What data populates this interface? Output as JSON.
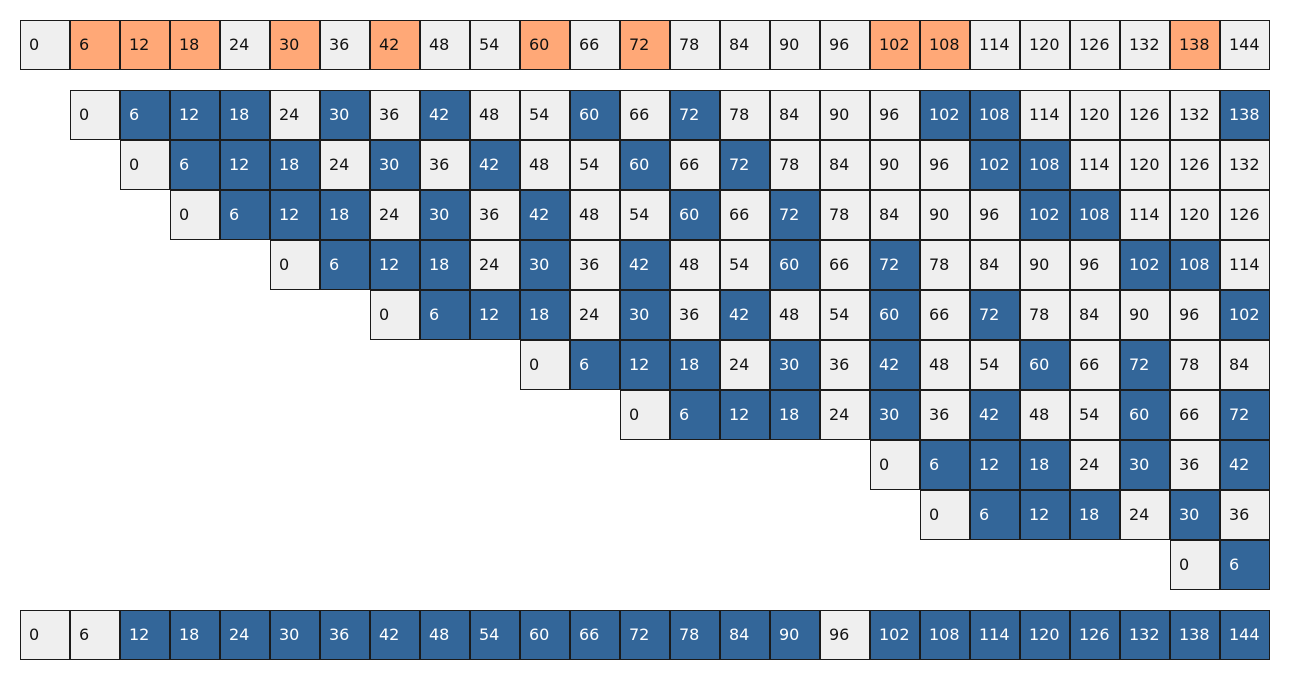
{
  "colors": {
    "plain": "#efefef",
    "orange": "#ffa877",
    "blue": "#336699",
    "border": "#1a1a1a"
  },
  "top_row": {
    "values": [
      0,
      6,
      12,
      18,
      24,
      30,
      36,
      42,
      48,
      54,
      60,
      66,
      72,
      78,
      84,
      90,
      96,
      102,
      108,
      114,
      120,
      126,
      132,
      138,
      144
    ],
    "highlighted": [
      6,
      12,
      18,
      30,
      42,
      60,
      72,
      102,
      108,
      138
    ]
  },
  "triangle_rows": [
    {
      "values": [
        0,
        6,
        12,
        18,
        24,
        30,
        36,
        42,
        48,
        54,
        60,
        66,
        72,
        78,
        84,
        90,
        96,
        102,
        108,
        114,
        120,
        126,
        132,
        138
      ],
      "highlighted": [
        6,
        12,
        18,
        30,
        42,
        60,
        72,
        102,
        108,
        138
      ]
    },
    {
      "values": [
        0,
        6,
        12,
        18,
        24,
        30,
        36,
        42,
        48,
        54,
        60,
        66,
        72,
        78,
        84,
        90,
        96,
        102,
        108,
        114,
        120,
        126,
        132
      ],
      "highlighted": [
        6,
        12,
        18,
        30,
        42,
        60,
        72,
        102,
        108
      ]
    },
    {
      "values": [
        0,
        6,
        12,
        18,
        24,
        30,
        36,
        42,
        48,
        54,
        60,
        66,
        72,
        78,
        84,
        90,
        96,
        102,
        108,
        114,
        120,
        126
      ],
      "highlighted": [
        6,
        12,
        18,
        30,
        42,
        60,
        72,
        102,
        108
      ]
    },
    {
      "values": [
        0,
        6,
        12,
        18,
        24,
        30,
        36,
        42,
        48,
        54,
        60,
        66,
        72,
        78,
        84,
        90,
        96,
        102,
        108,
        114
      ],
      "highlighted": [
        6,
        12,
        18,
        30,
        42,
        60,
        72,
        102,
        108
      ]
    },
    {
      "values": [
        0,
        6,
        12,
        18,
        24,
        30,
        36,
        42,
        48,
        54,
        60,
        66,
        72,
        78,
        84,
        90,
        96,
        102
      ],
      "highlighted": [
        6,
        12,
        18,
        30,
        42,
        60,
        72,
        102
      ]
    },
    {
      "values": [
        0,
        6,
        12,
        18,
        24,
        30,
        36,
        42,
        48,
        54,
        60,
        66,
        72,
        78,
        84
      ],
      "highlighted": [
        6,
        12,
        18,
        30,
        42,
        60,
        72
      ]
    },
    {
      "values": [
        0,
        6,
        12,
        18,
        24,
        30,
        36,
        42,
        48,
        54,
        60,
        66,
        72
      ],
      "highlighted": [
        6,
        12,
        18,
        30,
        42,
        60,
        72
      ]
    },
    {
      "values": [
        0,
        6,
        12,
        18,
        24,
        30,
        36,
        42
      ],
      "highlighted": [
        6,
        12,
        18,
        30,
        42
      ]
    },
    {
      "values": [
        0,
        6,
        12,
        18,
        24,
        30,
        36
      ],
      "highlighted": [
        6,
        12,
        18,
        30
      ]
    },
    {
      "values": [
        0,
        6
      ],
      "highlighted": [
        6
      ]
    }
  ],
  "bottom_row": {
    "values": [
      0,
      6,
      12,
      18,
      24,
      30,
      36,
      42,
      48,
      54,
      60,
      66,
      72,
      78,
      84,
      90,
      96,
      102,
      108,
      114,
      120,
      126,
      132,
      138,
      144
    ],
    "highlighted": [
      12,
      18,
      24,
      30,
      36,
      42,
      48,
      54,
      60,
      66,
      72,
      78,
      84,
      90,
      102,
      108,
      114,
      120,
      126,
      132,
      138,
      144
    ]
  }
}
